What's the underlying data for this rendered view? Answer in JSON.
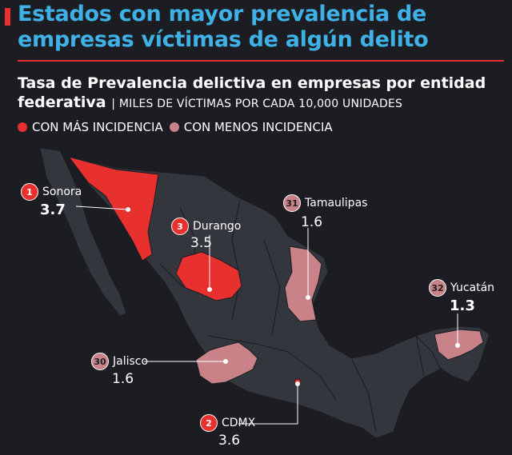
{
  "header": {
    "title": "Estados con mayor prevalencia de empresas víctimas de algún delito",
    "subtitle": "Tasa de Prevalencia delictiva en empresas por entidad federativa",
    "unit": "| MILES DE VÍCTIMAS POR CADA 10,000 UNIDADES"
  },
  "legend": {
    "more": "CON MÁS INCIDENCIA",
    "less": "CON MENOS INCIDENCIA"
  },
  "colors": {
    "more": "#e8302f",
    "less": "#c98388",
    "land": "#34363e",
    "background": "#1b1d22",
    "title": "#3fb1e6"
  },
  "states": [
    {
      "rank": "1",
      "name": "Sonora",
      "value": "3.7",
      "category": "more"
    },
    {
      "rank": "2",
      "name": "CDMX",
      "value": "3.6",
      "category": "more"
    },
    {
      "rank": "3",
      "name": "Durango",
      "value": "3.5",
      "category": "more"
    },
    {
      "rank": "30",
      "name": "Jalisco",
      "value": "1.6",
      "category": "less"
    },
    {
      "rank": "31",
      "name": "Tamaulipas",
      "value": "1.6",
      "category": "less"
    },
    {
      "rank": "32",
      "name": "Yucatán",
      "value": "1.3",
      "category": "less"
    }
  ]
}
